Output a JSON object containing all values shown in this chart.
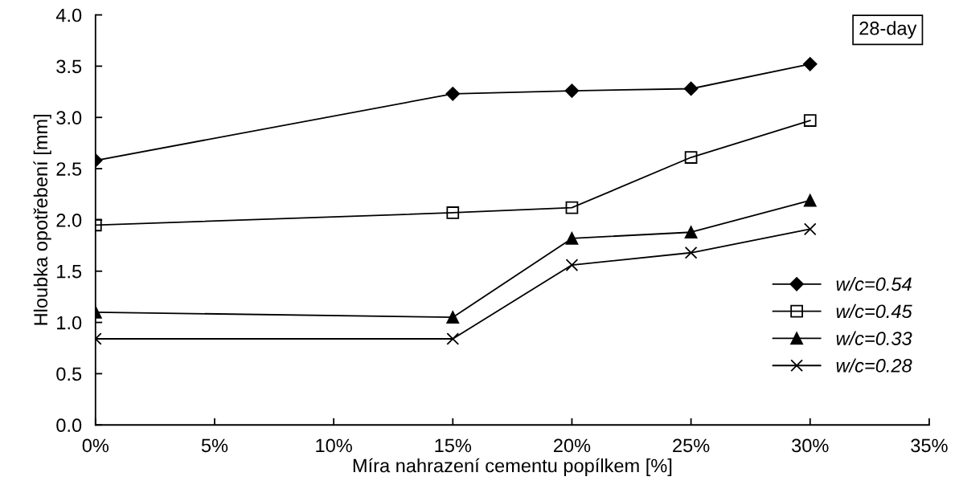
{
  "chart_data": {
    "type": "line",
    "xlabel": "Míra nahrazení cementu popílkem [%]",
    "ylabel": "Hloubka opotřebení [mm]",
    "x": [
      0,
      15,
      20,
      25,
      30
    ],
    "xlim": [
      0,
      35
    ],
    "xticks": [
      {
        "value": 0,
        "label": "0%"
      },
      {
        "value": 5,
        "label": "5%"
      },
      {
        "value": 10,
        "label": "10%"
      },
      {
        "value": 15,
        "label": "15%"
      },
      {
        "value": 20,
        "label": "20%"
      },
      {
        "value": 25,
        "label": "25%"
      },
      {
        "value": 30,
        "label": "30%"
      },
      {
        "value": 35,
        "label": "35%"
      }
    ],
    "ylim": [
      0,
      4
    ],
    "yticks": [
      {
        "value": 0,
        "label": "0.0"
      },
      {
        "value": 0.5,
        "label": "0.5"
      },
      {
        "value": 1,
        "label": "1.0"
      },
      {
        "value": 1.5,
        "label": "1.5"
      },
      {
        "value": 2,
        "label": "2.0"
      },
      {
        "value": 2.5,
        "label": "2.5"
      },
      {
        "value": 3,
        "label": "3.0"
      },
      {
        "value": 3.5,
        "label": "3.5"
      },
      {
        "value": 4,
        "label": "4.0"
      }
    ],
    "series": [
      {
        "name": "w/c=0.54",
        "color": "#000000",
        "marker": "diamond",
        "values": [
          2.58,
          3.23,
          3.26,
          3.28,
          3.52
        ]
      },
      {
        "name": "w/c=0.45",
        "color": "#000000",
        "marker": "square",
        "values": [
          1.95,
          2.07,
          2.12,
          2.61,
          2.97
        ]
      },
      {
        "name": "w/c=0.33",
        "color": "#000000",
        "marker": "triangle",
        "values": [
          1.1,
          1.05,
          1.82,
          1.88,
          2.19
        ]
      },
      {
        "name": "w/c=0.28",
        "color": "#000000",
        "marker": "cross",
        "values": [
          0.84,
          0.84,
          1.56,
          1.68,
          1.91
        ]
      }
    ],
    "annotations": [
      "28-day"
    ],
    "grid": false,
    "legend": "right",
    "line_style": "solid"
  }
}
